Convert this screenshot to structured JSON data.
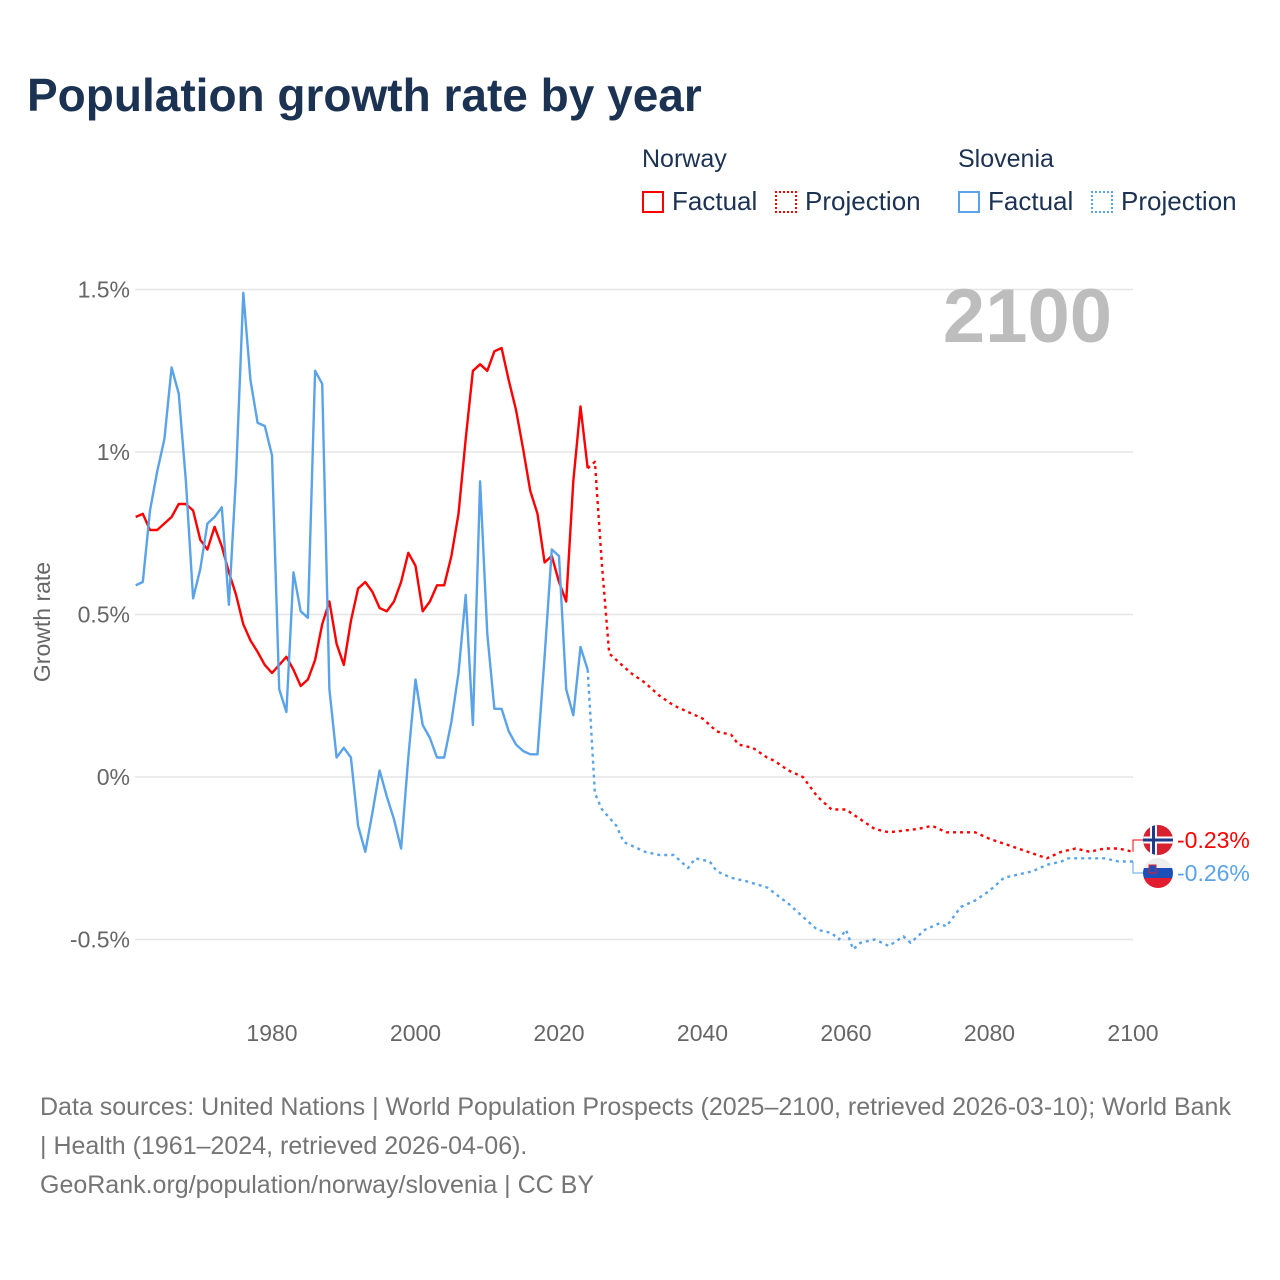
{
  "title": "Population growth rate by year",
  "legend": {
    "groups": [
      {
        "name": "Norway",
        "factual": "Factual",
        "projection": "Projection",
        "color": "#ff0000"
      },
      {
        "name": "Slovenia",
        "factual": "Factual",
        "projection": "Projection",
        "color": "#5aa3e8"
      }
    ]
  },
  "year_display": "2100",
  "footer": {
    "sources": "Data sources: United Nations | World Population Prospects (2025–2100, retrieved 2026-03-10); World Bank | Health (1961–2024, retrieved 2026-04-06).",
    "credit": "GeoRank.org/population/norway/slovenia | CC BY"
  },
  "chart_data": {
    "type": "line",
    "title": "Population growth rate by year",
    "xlabel": "",
    "ylabel": "Growth rate",
    "xlim": [
      1961,
      2100
    ],
    "ylim": [
      -0.7,
      1.55
    ],
    "xticks": [
      {
        "v": 1980,
        "label": "1980"
      },
      {
        "v": 2000,
        "label": "2000"
      },
      {
        "v": 2020,
        "label": "2020"
      },
      {
        "v": 2040,
        "label": "2040"
      },
      {
        "v": 2060,
        "label": "2060"
      },
      {
        "v": 2080,
        "label": "2080"
      },
      {
        "v": 2100,
        "label": "2100"
      }
    ],
    "yticks": [
      {
        "v": 1.5,
        "label": "1.5%"
      },
      {
        "v": 1,
        "label": "1%"
      },
      {
        "v": 0.5,
        "label": "0.5%"
      },
      {
        "v": 0,
        "label": "0%"
      },
      {
        "v": -0.5,
        "label": "-0.5%"
      }
    ],
    "grid": true,
    "series": [
      {
        "name": "Norway",
        "kind": "factual",
        "color": "#ff0000",
        "x": [
          1961,
          1962,
          1963,
          1964,
          1965,
          1966,
          1967,
          1968,
          1969,
          1970,
          1971,
          1972,
          1973,
          1974,
          1975,
          1976,
          1977,
          1978,
          1979,
          1980,
          1981,
          1982,
          1983,
          1984,
          1985,
          1986,
          1987,
          1988,
          1989,
          1990,
          1991,
          1992,
          1993,
          1994,
          1995,
          1996,
          1997,
          1998,
          1999,
          2000,
          2001,
          2002,
          2003,
          2004,
          2005,
          2006,
          2007,
          2008,
          2009,
          2010,
          2011,
          2012,
          2013,
          2014,
          2015,
          2016,
          2017,
          2018,
          2019,
          2020,
          2021,
          2022,
          2023,
          2024
        ],
        "y": [
          0.8,
          0.81,
          0.76,
          0.76,
          0.78,
          0.8,
          0.84,
          0.84,
          0.82,
          0.73,
          0.7,
          0.77,
          0.71,
          0.63,
          0.56,
          0.47,
          0.42,
          0.385,
          0.345,
          0.32,
          0.345,
          0.37,
          0.33,
          0.28,
          0.3,
          0.36,
          0.47,
          0.54,
          0.41,
          0.345,
          0.48,
          0.58,
          0.6,
          0.57,
          0.52,
          0.51,
          0.54,
          0.6,
          0.69,
          0.65,
          0.51,
          0.54,
          0.59,
          0.59,
          0.68,
          0.81,
          1.04,
          1.25,
          1.27,
          1.25,
          1.31,
          1.32,
          1.22,
          1.13,
          1.01,
          0.88,
          0.81,
          0.66,
          0.68,
          0.6,
          0.54,
          0.91,
          1.14,
          0.95
        ]
      },
      {
        "name": "Norway",
        "kind": "projection",
        "color": "#ff0000",
        "x": [
          2024,
          2025,
          2026,
          2027,
          2028,
          2030,
          2032,
          2034,
          2036,
          2038,
          2040,
          2042,
          2044,
          2045,
          2047,
          2049,
          2050,
          2052,
          2054,
          2056,
          2058,
          2060,
          2062,
          2064,
          2066,
          2070,
          2072,
          2074,
          2078,
          2080,
          2084,
          2088,
          2090,
          2092,
          2094,
          2096,
          2098,
          2100
        ],
        "y": [
          0.95,
          0.97,
          0.65,
          0.38,
          0.36,
          0.32,
          0.29,
          0.25,
          0.22,
          0.2,
          0.18,
          0.14,
          0.13,
          0.1,
          0.09,
          0.06,
          0.05,
          0.02,
          0.0,
          -0.06,
          -0.1,
          -0.1,
          -0.13,
          -0.16,
          -0.17,
          -0.16,
          -0.15,
          -0.17,
          -0.17,
          -0.19,
          -0.22,
          -0.25,
          -0.23,
          -0.22,
          -0.23,
          -0.22,
          -0.22,
          -0.23
        ]
      },
      {
        "name": "Slovenia",
        "kind": "factual",
        "color": "#5aa3e8",
        "x": [
          1961,
          1962,
          1963,
          1964,
          1965,
          1966,
          1967,
          1968,
          1969,
          1970,
          1971,
          1972,
          1973,
          1974,
          1975,
          1976,
          1977,
          1978,
          1979,
          1980,
          1981,
          1982,
          1983,
          1984,
          1985,
          1986,
          1987,
          1988,
          1989,
          1990,
          1991,
          1992,
          1993,
          1994,
          1995,
          1996,
          1997,
          1998,
          1999,
          2000,
          2001,
          2002,
          2003,
          2004,
          2005,
          2006,
          2007,
          2008,
          2009,
          2010,
          2011,
          2012,
          2013,
          2014,
          2015,
          2016,
          2017,
          2018,
          2019,
          2020,
          2021,
          2022,
          2023,
          2024
        ],
        "y": [
          0.59,
          0.6,
          0.82,
          0.94,
          1.04,
          1.26,
          1.18,
          0.91,
          0.55,
          0.64,
          0.78,
          0.8,
          0.83,
          0.53,
          0.93,
          1.49,
          1.22,
          1.09,
          1.08,
          0.99,
          0.27,
          0.2,
          0.63,
          0.51,
          0.49,
          1.25,
          1.21,
          0.27,
          0.06,
          0.09,
          0.06,
          -0.15,
          -0.23,
          -0.11,
          0.02,
          -0.06,
          -0.13,
          -0.22,
          0.06,
          0.3,
          0.16,
          0.12,
          0.06,
          0.06,
          0.17,
          0.32,
          0.56,
          0.16,
          0.91,
          0.44,
          0.21,
          0.21,
          0.14,
          0.1,
          0.08,
          0.07,
          0.07,
          0.37,
          0.7,
          0.68,
          0.27,
          0.19,
          0.4,
          0.33
        ]
      },
      {
        "name": "Slovenia",
        "kind": "projection",
        "color": "#5aa3e8",
        "x": [
          2024,
          2025,
          2026,
          2028,
          2029,
          2032,
          2034,
          2036,
          2038,
          2039,
          2041,
          2042,
          2044,
          2046,
          2049,
          2052,
          2054,
          2056,
          2058,
          2059,
          2060,
          2061,
          2062,
          2064,
          2066,
          2068,
          2069,
          2071,
          2073,
          2074,
          2076,
          2078,
          2080,
          2082,
          2084,
          2086,
          2088,
          2090,
          2091,
          2094,
          2096,
          2098,
          2100
        ],
        "y": [
          0.33,
          -0.05,
          -0.1,
          -0.15,
          -0.2,
          -0.23,
          -0.24,
          -0.24,
          -0.28,
          -0.25,
          -0.26,
          -0.29,
          -0.31,
          -0.32,
          -0.34,
          -0.39,
          -0.43,
          -0.47,
          -0.48,
          -0.5,
          -0.47,
          -0.53,
          -0.51,
          -0.5,
          -0.52,
          -0.49,
          -0.51,
          -0.47,
          -0.45,
          -0.46,
          -0.4,
          -0.38,
          -0.35,
          -0.31,
          -0.3,
          -0.29,
          -0.27,
          -0.26,
          -0.25,
          -0.25,
          -0.25,
          -0.26,
          -0.26
        ]
      }
    ],
    "end_labels": [
      {
        "country": "Norway",
        "label": "-0.23%",
        "value": -0.23,
        "color": "#ff0000"
      },
      {
        "country": "Slovenia",
        "label": "-0.26%",
        "value": -0.26,
        "color": "#5aa3e8"
      }
    ]
  }
}
